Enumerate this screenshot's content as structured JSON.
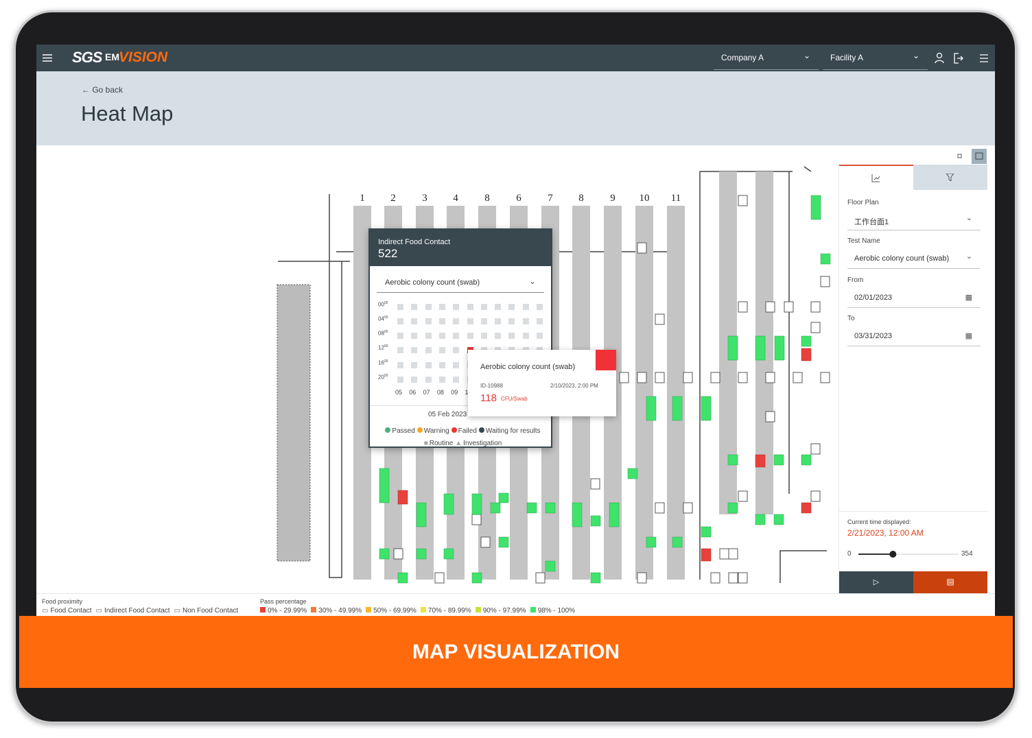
{
  "header": {
    "logo": "SGS",
    "brand_em": "EM",
    "brand_vision": "VISION",
    "company": "Company A",
    "facility": "Facility A"
  },
  "page": {
    "back": "Go back",
    "title": "Heat Map"
  },
  "floor_plan": {
    "aisles": [
      "1",
      "2",
      "3",
      "4",
      "8",
      "6",
      "7",
      "8",
      "9",
      "10",
      "11"
    ]
  },
  "popup": {
    "title": "Indirect Food Contact",
    "count": "522",
    "test": "Aerobic colony count (swab)",
    "hours": [
      "00",
      "04",
      "08",
      "12",
      "16",
      "20"
    ],
    "minutes": "00",
    "days": [
      "05",
      "06",
      "07",
      "08",
      "09",
      "1"
    ],
    "date": "05 Feb 2023",
    "legend": [
      {
        "label": "Passed",
        "color": "#4caf7d"
      },
      {
        "label": "Warning",
        "color": "#f5a623"
      },
      {
        "label": "Failed",
        "color": "#e53935"
      },
      {
        "label": "Waiting for results",
        "color": "#39474f"
      }
    ],
    "types": [
      "Routine",
      "Investigation"
    ]
  },
  "tooltip": {
    "title": "Aerobic colony count (swab)",
    "id": "ID-10988",
    "datetime": "2/10/2023, 2:00 PM",
    "value": "118",
    "unit": "CFU/Swab"
  },
  "panel": {
    "fields": [
      {
        "label": "Floor Plan",
        "value": "工作台面1"
      },
      {
        "label": "Test Name",
        "value": "Aerobic colony count (swab)"
      },
      {
        "label": "From",
        "value": "02/01/2023"
      },
      {
        "label": "To",
        "value": "03/31/2023"
      }
    ],
    "current_label": "Current time displayed:",
    "current": "2/21/2023, 12:00 AM",
    "slider": {
      "min": 0,
      "max": 354,
      "value": 122
    }
  },
  "footer": {
    "proximity_title": "Food proximity",
    "proximity": [
      "Food Contact",
      "Indirect Food Contact",
      "Non Food Contact"
    ],
    "pass_title": "Pass percentage",
    "pass": [
      {
        "label": "0% - 29.99%",
        "color": "#e8413c"
      },
      {
        "label": "30% - 49.99%",
        "color": "#f07b3a"
      },
      {
        "label": "50% - 69.99%",
        "color": "#f5b731"
      },
      {
        "label": "70% - 89.99%",
        "color": "#f2e14a"
      },
      {
        "label": "90% - 97.99%",
        "color": "#c6e33f"
      },
      {
        "label": "98% - 100%",
        "color": "#3fe36c"
      }
    ]
  },
  "banner": "MAP VISUALIZATION"
}
